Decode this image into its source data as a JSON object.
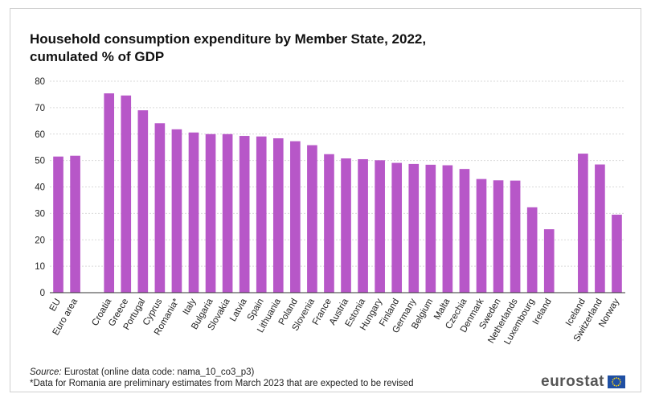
{
  "title": {
    "line1": "Household consumption expenditure by Member State, 2022,",
    "line2": "cumulated %  of GDP"
  },
  "footer": {
    "source_label": "Source:",
    "source_text": " Eurostat (online data code: nama_10_co3_p3)",
    "note": "*Data for Romania are preliminary estimates from March 2023 that are expected to be revised"
  },
  "logo": {
    "text": "eurostat"
  },
  "colors": {
    "bar": "#b757c8",
    "grid": "#d9d9d9",
    "axis": "#333333"
  },
  "chart_data": {
    "type": "bar",
    "title": "Household consumption expenditure by Member State, 2022, cumulated %  of GDP",
    "xlabel": "",
    "ylabel": "",
    "ylim": [
      0,
      80
    ],
    "yticks": [
      0,
      10,
      20,
      30,
      40,
      50,
      60,
      70,
      80
    ],
    "grid": true,
    "legend": "none",
    "categories": [
      "EU",
      "Euro area",
      "",
      "Croatia",
      "Greece",
      "Portugal",
      "Cyprus",
      "Romania*",
      "Italy",
      "Bulgaria",
      "Slovakia",
      "Latvia",
      "Spain",
      "Lithuania",
      "Poland",
      "Slovenia",
      "France",
      "Austria",
      "Estonia",
      "Hungary",
      "Finland",
      "Germany",
      "Belgium",
      "Malta",
      "Czechia",
      "Denmark",
      "Sweden",
      "Netherlands",
      "Luxembourg",
      "Ireland",
      "",
      "Iceland",
      "Switzerland",
      "Norway"
    ],
    "values": [
      51.5,
      51.8,
      null,
      75.4,
      74.6,
      69.0,
      64.1,
      61.8,
      60.6,
      60.0,
      60.0,
      59.3,
      59.1,
      58.4,
      57.3,
      55.8,
      52.4,
      50.8,
      50.5,
      50.1,
      49.1,
      48.7,
      48.4,
      48.2,
      46.8,
      43.0,
      42.5,
      42.4,
      32.3,
      24.0,
      null,
      52.6,
      48.5,
      29.5
    ]
  }
}
